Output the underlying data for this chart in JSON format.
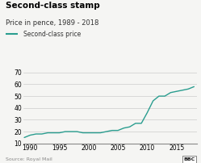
{
  "title": "Second-class stamp",
  "subtitle": "Price in pence, 1989 - 2018",
  "legend_label": "Second-class price",
  "source": "Source: Royal Mail",
  "line_color": "#2a9d8f",
  "background_color": "#f5f5f3",
  "xlim": [
    1988.8,
    2018.5
  ],
  "ylim": [
    10,
    72
  ],
  "yticks": [
    10,
    20,
    30,
    40,
    50,
    60,
    70
  ],
  "xticks": [
    1990,
    1995,
    2000,
    2005,
    2010,
    2015
  ],
  "years": [
    1989,
    1990,
    1991,
    1992,
    1993,
    1994,
    1995,
    1996,
    1997,
    1998,
    1999,
    2000,
    2001,
    2002,
    2003,
    2004,
    2005,
    2006,
    2007,
    2008,
    2009,
    2010,
    2011,
    2012,
    2013,
    2014,
    2015,
    2016,
    2017,
    2018
  ],
  "prices": [
    15,
    17,
    18,
    18,
    19,
    19,
    19,
    20,
    20,
    20,
    19,
    19,
    19,
    19,
    20,
    21,
    21,
    23,
    24,
    27,
    27,
    36,
    46,
    50,
    50,
    53,
    54,
    55,
    56,
    58
  ]
}
